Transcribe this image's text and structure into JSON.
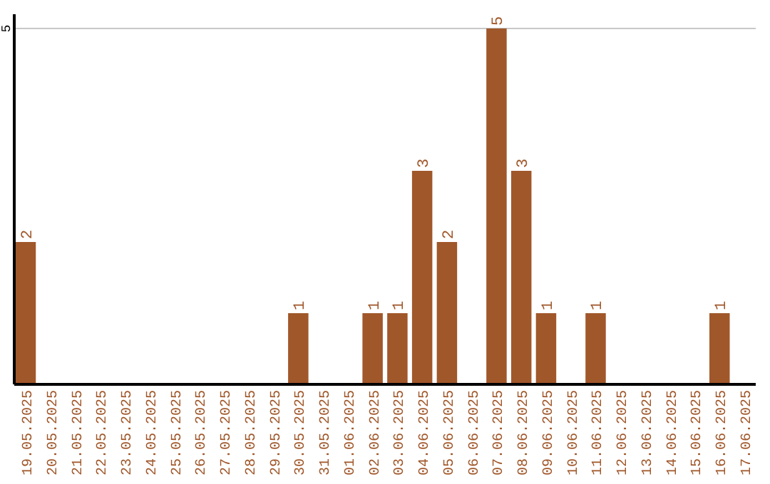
{
  "chart_data": {
    "type": "bar",
    "categories": [
      "19.05.2025",
      "20.05.2025",
      "21.05.2025",
      "22.05.2025",
      "23.05.2025",
      "24.05.2025",
      "25.05.2025",
      "26.05.2025",
      "27.05.2025",
      "28.05.2025",
      "29.05.2025",
      "30.05.2025",
      "31.05.2025",
      "01.06.2025",
      "02.06.2025",
      "03.06.2025",
      "04.06.2025",
      "05.06.2025",
      "06.06.2025",
      "07.06.2025",
      "08.06.2025",
      "09.06.2025",
      "10.06.2025",
      "11.06.2025",
      "12.06.2025",
      "13.06.2025",
      "14.06.2025",
      "15.06.2025",
      "16.06.2025",
      "17.06.2025"
    ],
    "values": [
      2,
      0,
      0,
      0,
      0,
      0,
      0,
      0,
      0,
      0,
      0,
      1,
      0,
      0,
      1,
      1,
      3,
      2,
      0,
      5,
      3,
      1,
      0,
      1,
      0,
      0,
      0,
      0,
      1,
      0
    ],
    "value_labels": [
      "2",
      null,
      null,
      null,
      null,
      null,
      null,
      null,
      null,
      null,
      null,
      "1",
      null,
      null,
      "1",
      "1",
      "3",
      "2",
      null,
      "5",
      "3",
      "1",
      null,
      "1",
      null,
      null,
      null,
      null,
      "1",
      null
    ],
    "color": "#a0572a",
    "ylim": [
      0,
      5.2
    ],
    "yticks": [
      5
    ],
    "grid": "y"
  }
}
